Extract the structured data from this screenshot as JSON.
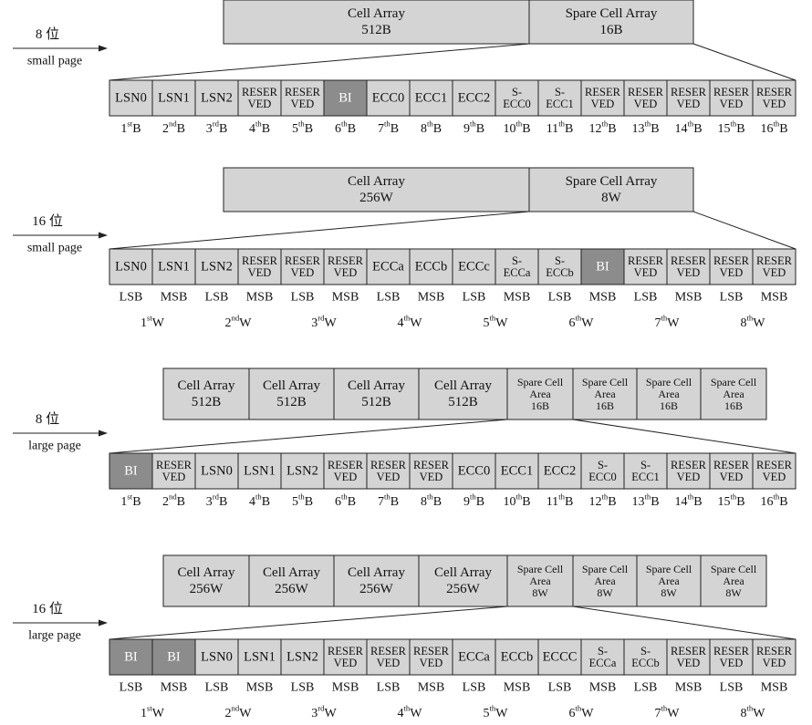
{
  "diagrams": [
    {
      "side_label": {
        "title": "8 位",
        "subtitle": "small page"
      },
      "top_cells": [
        {
          "lines": [
            "Cell Array",
            "512B"
          ]
        },
        {
          "lines": [
            "Spare Cell Array",
            "16B"
          ]
        }
      ],
      "spare_cells": [
        {
          "lines": [
            "LSN0"
          ]
        },
        {
          "lines": [
            "LSN1"
          ]
        },
        {
          "lines": [
            "LSN2"
          ]
        },
        {
          "lines": [
            "RESER",
            "VED"
          ]
        },
        {
          "lines": [
            "RESER",
            "VED"
          ]
        },
        {
          "lines": [
            "BI"
          ],
          "dark": true
        },
        {
          "lines": [
            "ECC0"
          ]
        },
        {
          "lines": [
            "ECC1"
          ]
        },
        {
          "lines": [
            "ECC2"
          ]
        },
        {
          "lines": [
            "S-",
            "ECC0"
          ]
        },
        {
          "lines": [
            "S-",
            "ECC1"
          ]
        },
        {
          "lines": [
            "RESER",
            "VED"
          ]
        },
        {
          "lines": [
            "RESER",
            "VED"
          ]
        },
        {
          "lines": [
            "RESER",
            "VED"
          ]
        },
        {
          "lines": [
            "RESER",
            "VED"
          ]
        },
        {
          "lines": [
            "RESER",
            "VED"
          ]
        }
      ],
      "byte_labels": [
        {
          "n": "1",
          "sup": "st",
          "u": "B"
        },
        {
          "n": "2",
          "sup": "nd",
          "u": "B"
        },
        {
          "n": "3",
          "sup": "rd",
          "u": "B"
        },
        {
          "n": "4",
          "sup": "th",
          "u": "B"
        },
        {
          "n": "5",
          "sup": "th",
          "u": "B"
        },
        {
          "n": "6",
          "sup": "th",
          "u": "B"
        },
        {
          "n": "7",
          "sup": "th",
          "u": "B"
        },
        {
          "n": "8",
          "sup": "th",
          "u": "B"
        },
        {
          "n": "9",
          "sup": "th",
          "u": "B"
        },
        {
          "n": "10",
          "sup": "th",
          "u": "B"
        },
        {
          "n": "11",
          "sup": "th",
          "u": "B"
        },
        {
          "n": "12",
          "sup": "th",
          "u": "B"
        },
        {
          "n": "13",
          "sup": "th",
          "u": "B"
        },
        {
          "n": "14",
          "sup": "th",
          "u": "B"
        },
        {
          "n": "15",
          "sup": "th",
          "u": "B"
        },
        {
          "n": "16",
          "sup": "th",
          "u": "B"
        }
      ],
      "lsb_msb_labels": [],
      "word_labels": []
    },
    {
      "side_label": {
        "title": "16 位",
        "subtitle": "small page"
      },
      "top_cells": [
        {
          "lines": [
            "Cell Array",
            "256W"
          ]
        },
        {
          "lines": [
            "Spare Cell Array",
            "8W"
          ]
        }
      ],
      "spare_cells": [
        {
          "lines": [
            "LSN0"
          ]
        },
        {
          "lines": [
            "LSN1"
          ]
        },
        {
          "lines": [
            "LSN2"
          ]
        },
        {
          "lines": [
            "RESER",
            "VED"
          ]
        },
        {
          "lines": [
            "RESER",
            "VED"
          ]
        },
        {
          "lines": [
            "RESER",
            "VED"
          ]
        },
        {
          "lines": [
            "ECCa"
          ]
        },
        {
          "lines": [
            "ECCb"
          ]
        },
        {
          "lines": [
            "ECCc"
          ]
        },
        {
          "lines": [
            "S-",
            "ECCa"
          ]
        },
        {
          "lines": [
            "S-",
            "ECCb"
          ]
        },
        {
          "lines": [
            "BI"
          ],
          "dark": true
        },
        {
          "lines": [
            "RESER",
            "VED"
          ]
        },
        {
          "lines": [
            "RESER",
            "VED"
          ]
        },
        {
          "lines": [
            "RESER",
            "VED"
          ]
        },
        {
          "lines": [
            "RESER",
            "VED"
          ]
        }
      ],
      "byte_labels": [],
      "lsb_msb_labels": [
        "LSB",
        "MSB",
        "LSB",
        "MSB",
        "LSB",
        "MSB",
        "LSB",
        "MSB",
        "LSB",
        "MSB",
        "LSB",
        "MSB",
        "LSB",
        "MSB",
        "LSB",
        "MSB"
      ],
      "word_labels": [
        {
          "n": "1",
          "sup": "st",
          "u": "W"
        },
        {
          "n": "2",
          "sup": "nd",
          "u": "W"
        },
        {
          "n": "3",
          "sup": "rd",
          "u": "W"
        },
        {
          "n": "4",
          "sup": "th",
          "u": "W"
        },
        {
          "n": "5",
          "sup": "th",
          "u": "W"
        },
        {
          "n": "6",
          "sup": "th",
          "u": "W"
        },
        {
          "n": "7",
          "sup": "th",
          "u": "W"
        },
        {
          "n": "8",
          "sup": "th",
          "u": "W"
        }
      ]
    },
    {
      "side_label": {
        "title": "8 位",
        "subtitle": "large page"
      },
      "top_cells": [
        {
          "lines": [
            "Cell Array",
            "512B"
          ]
        },
        {
          "lines": [
            "Cell Array",
            "512B"
          ]
        },
        {
          "lines": [
            "Cell Array",
            "512B"
          ]
        },
        {
          "lines": [
            "Cell Array",
            "512B"
          ]
        },
        {
          "lines": [
            "Spare Cell",
            "Area",
            "16B"
          ],
          "small": true
        },
        {
          "lines": [
            "Spare Cell",
            "Area",
            "16B"
          ],
          "small": true
        },
        {
          "lines": [
            "Spare Cell",
            "Area",
            "16B"
          ],
          "small": true
        },
        {
          "lines": [
            "Spare Cell",
            "Area",
            "16B"
          ],
          "small": true
        }
      ],
      "spare_cells": [
        {
          "lines": [
            "BI"
          ],
          "dark": true
        },
        {
          "lines": [
            "RESER",
            "VED"
          ]
        },
        {
          "lines": [
            "LSN0"
          ]
        },
        {
          "lines": [
            "LSN1"
          ]
        },
        {
          "lines": [
            "LSN2"
          ]
        },
        {
          "lines": [
            "RESER",
            "VED"
          ]
        },
        {
          "lines": [
            "RESER",
            "VED"
          ]
        },
        {
          "lines": [
            "RESER",
            "VED"
          ]
        },
        {
          "lines": [
            "ECC0"
          ]
        },
        {
          "lines": [
            "ECC1"
          ]
        },
        {
          "lines": [
            "ECC2"
          ]
        },
        {
          "lines": [
            "S-",
            "ECC0"
          ]
        },
        {
          "lines": [
            "S-",
            "ECC1"
          ]
        },
        {
          "lines": [
            "RESER",
            "VED"
          ]
        },
        {
          "lines": [
            "RESER",
            "VED"
          ]
        },
        {
          "lines": [
            "RESER",
            "VED"
          ]
        }
      ],
      "byte_labels": [
        {
          "n": "1",
          "sup": "st",
          "u": "B"
        },
        {
          "n": "2",
          "sup": "nd",
          "u": "B"
        },
        {
          "n": "3",
          "sup": "rd",
          "u": "B"
        },
        {
          "n": "4",
          "sup": "th",
          "u": "B"
        },
        {
          "n": "5",
          "sup": "th",
          "u": "B"
        },
        {
          "n": "6",
          "sup": "th",
          "u": "B"
        },
        {
          "n": "7",
          "sup": "th",
          "u": "B"
        },
        {
          "n": "8",
          "sup": "th",
          "u": "B"
        },
        {
          "n": "9",
          "sup": "th",
          "u": "B"
        },
        {
          "n": "10",
          "sup": "th",
          "u": "B"
        },
        {
          "n": "11",
          "sup": "th",
          "u": "B"
        },
        {
          "n": "12",
          "sup": "th",
          "u": "B"
        },
        {
          "n": "13",
          "sup": "th",
          "u": "B"
        },
        {
          "n": "14",
          "sup": "th",
          "u": "B"
        },
        {
          "n": "15",
          "sup": "th",
          "u": "B"
        },
        {
          "n": "16",
          "sup": "th",
          "u": "B"
        }
      ],
      "lsb_msb_labels": [],
      "word_labels": []
    },
    {
      "side_label": {
        "title": "16 位",
        "subtitle": "large page"
      },
      "top_cells": [
        {
          "lines": [
            "Cell Array",
            "256W"
          ]
        },
        {
          "lines": [
            "Cell Array",
            "256W"
          ]
        },
        {
          "lines": [
            "Cell Array",
            "256W"
          ]
        },
        {
          "lines": [
            "Cell Array",
            "256W"
          ]
        },
        {
          "lines": [
            "Spare Cell",
            "Area",
            "8W"
          ],
          "small": true
        },
        {
          "lines": [
            "Spare Cell",
            "Area",
            "8W"
          ],
          "small": true
        },
        {
          "lines": [
            "Spare Cell",
            "Area",
            "8W"
          ],
          "small": true
        },
        {
          "lines": [
            "Spare Cell",
            "Area",
            "8W"
          ],
          "small": true
        }
      ],
      "spare_cells": [
        {
          "lines": [
            "BI"
          ],
          "dark": true
        },
        {
          "lines": [
            "BI"
          ],
          "dark": true
        },
        {
          "lines": [
            "LSN0"
          ]
        },
        {
          "lines": [
            "LSN1"
          ]
        },
        {
          "lines": [
            "LSN2"
          ]
        },
        {
          "lines": [
            "RESER",
            "VED"
          ]
        },
        {
          "lines": [
            "RESER",
            "VED"
          ]
        },
        {
          "lines": [
            "RESER",
            "VED"
          ]
        },
        {
          "lines": [
            "ECCa"
          ]
        },
        {
          "lines": [
            "ECCb"
          ]
        },
        {
          "lines": [
            "ECCC"
          ]
        },
        {
          "lines": [
            "S-",
            "ECCa"
          ]
        },
        {
          "lines": [
            "S-",
            "ECCb"
          ]
        },
        {
          "lines": [
            "RESER",
            "VED"
          ]
        },
        {
          "lines": [
            "RESER",
            "VED"
          ]
        },
        {
          "lines": [
            "RESER",
            "VED"
          ]
        }
      ],
      "byte_labels": [],
      "lsb_msb_labels": [
        "LSB",
        "MSB",
        "LSB",
        "MSB",
        "LSB",
        "MSB",
        "LSB",
        "MSB",
        "LSB",
        "MSB",
        "LSB",
        "MSB",
        "LSB",
        "MSB",
        "LSB",
        "MSB"
      ],
      "word_labels": [
        {
          "n": "1",
          "sup": "st",
          "u": "W"
        },
        {
          "n": "2",
          "sup": "nd",
          "u": "W"
        },
        {
          "n": "3",
          "sup": "rd",
          "u": "W"
        },
        {
          "n": "4",
          "sup": "th",
          "u": "W"
        },
        {
          "n": "5",
          "sup": "th",
          "u": "W"
        },
        {
          "n": "6",
          "sup": "th",
          "u": "W"
        },
        {
          "n": "7",
          "sup": "th",
          "u": "W"
        },
        {
          "n": "8",
          "sup": "th",
          "u": "W"
        }
      ]
    }
  ],
  "colors": {
    "cell_fill": "#d4d4d4",
    "dark_fill": "#8c8c8c",
    "line": "#222222"
  }
}
